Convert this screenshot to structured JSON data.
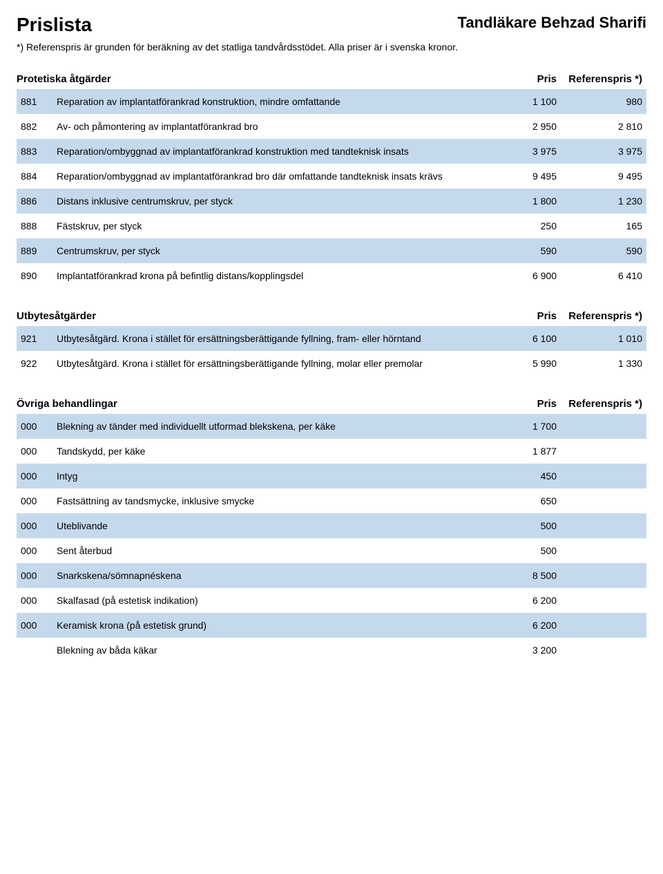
{
  "header": {
    "leftTitle": "Prislista",
    "rightTitle": "Tandläkare Behzad Sharifi",
    "subtitle": "*) Referenspris är grunden för beräkning av det statliga tandvårdsstödet. Alla priser är i svenska kronor."
  },
  "columns": {
    "pris": "Pris",
    "ref": "Referenspris *)"
  },
  "colors": {
    "stripe": "#c5d9ed",
    "background": "#ffffff",
    "text": "#000000"
  },
  "sections": [
    {
      "title": "Protetiska åtgärder",
      "rows": [
        {
          "code": "881",
          "desc": "Reparation av implantatförankrad konstruktion, mindre omfattande",
          "pris": "1 100",
          "ref": "980"
        },
        {
          "code": "882",
          "desc": "Av- och påmontering av implantatförankrad bro",
          "pris": "2 950",
          "ref": "2 810"
        },
        {
          "code": "883",
          "desc": "Reparation/ombyggnad av implantatförankrad konstruktion med tandteknisk insats",
          "pris": "3 975",
          "ref": "3 975"
        },
        {
          "code": "884",
          "desc": "Reparation/ombyggnad av implantatförankrad bro där omfattande tandteknisk insats krävs",
          "pris": "9 495",
          "ref": "9 495"
        },
        {
          "code": "886",
          "desc": "Distans inklusive centrumskruv, per styck",
          "pris": "1 800",
          "ref": "1 230"
        },
        {
          "code": "888",
          "desc": "Fästskruv, per styck",
          "pris": "250",
          "ref": "165"
        },
        {
          "code": "889",
          "desc": "Centrumskruv, per styck",
          "pris": "590",
          "ref": "590"
        },
        {
          "code": "890",
          "desc": "Implantatförankrad krona på befintlig distans/kopplingsdel",
          "pris": "6 900",
          "ref": "6 410"
        }
      ]
    },
    {
      "title": "Utbytesåtgärder",
      "rows": [
        {
          "code": "921",
          "desc": "Utbytesåtgärd. Krona i stället för ersättningsberättigande fyllning, fram- eller hörntand",
          "pris": "6 100",
          "ref": "1 010"
        },
        {
          "code": "922",
          "desc": "Utbytesåtgärd. Krona i stället för ersättningsberättigande fyllning, molar eller premolar",
          "pris": "5 990",
          "ref": "1 330"
        }
      ]
    },
    {
      "title": "Övriga behandlingar",
      "rows": [
        {
          "code": "000",
          "desc": "Blekning av tänder med individuellt utformad blekskena, per käke",
          "pris": "1 700",
          "ref": ""
        },
        {
          "code": "000",
          "desc": "Tandskydd, per käke",
          "pris": "1 877",
          "ref": ""
        },
        {
          "code": "000",
          "desc": "Intyg",
          "pris": "450",
          "ref": ""
        },
        {
          "code": "000",
          "desc": "Fastsättning av tandsmycke, inklusive smycke",
          "pris": "650",
          "ref": ""
        },
        {
          "code": "000",
          "desc": "Uteblivande",
          "pris": "500",
          "ref": ""
        },
        {
          "code": "000",
          "desc": "Sent återbud",
          "pris": "500",
          "ref": ""
        },
        {
          "code": "000",
          "desc": "Snarkskena/sömnapnéskena",
          "pris": "8 500",
          "ref": ""
        },
        {
          "code": "000",
          "desc": "Skalfasad (på estetisk indikation)",
          "pris": "6 200",
          "ref": ""
        },
        {
          "code": "000",
          "desc": "Keramisk krona (på estetisk grund)",
          "pris": "6 200",
          "ref": ""
        },
        {
          "code": "",
          "desc": "Blekning av båda käkar",
          "pris": "3 200",
          "ref": ""
        }
      ]
    }
  ]
}
